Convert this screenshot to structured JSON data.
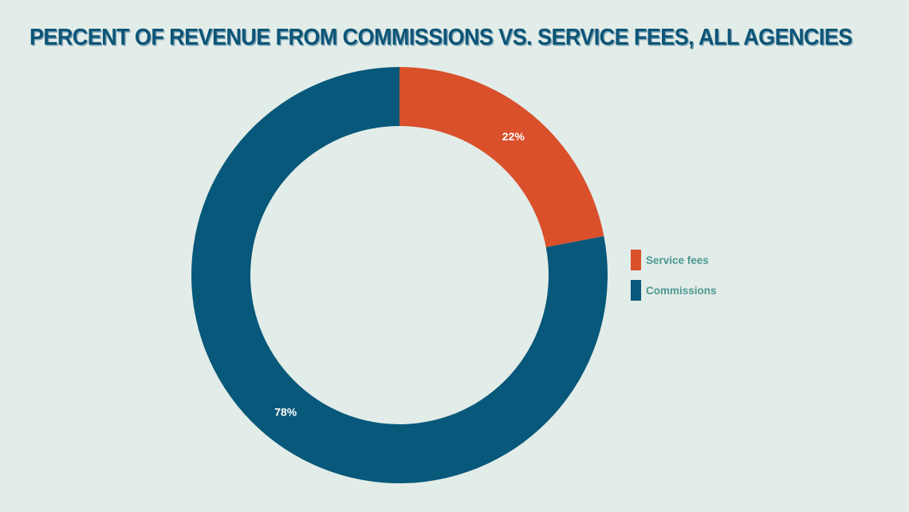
{
  "chart_data": {
    "type": "pie",
    "title": "PERCENT OF REVENUE FROM COMMISSIONS VS. SERVICE FEES, ALL AGENCIES",
    "donut": true,
    "legend_placement": "right",
    "slices": [
      {
        "label": "Service fees",
        "value": 22,
        "display": "22%",
        "color": "#d9502b"
      },
      {
        "label": "Commissions",
        "value": 78,
        "display": "78%",
        "color": "#07587a"
      }
    ]
  }
}
